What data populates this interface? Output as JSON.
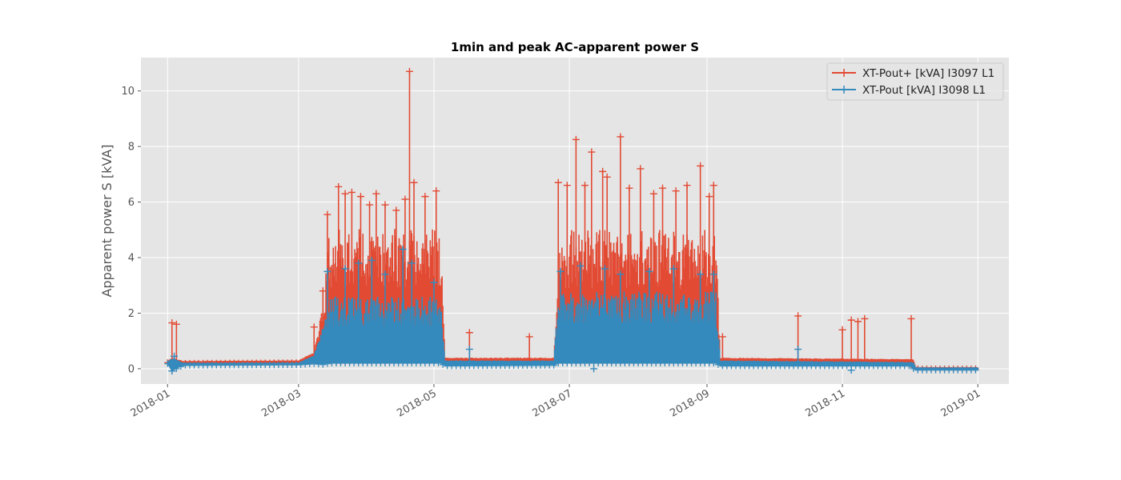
{
  "chart_data": {
    "type": "line",
    "title": "1min and peak AC-apparent power S",
    "xlabel": "",
    "ylabel": "Apparent power S [kVA]",
    "x_type": "date",
    "xlim": [
      "2017-12-20",
      "2019-01-15"
    ],
    "ylim": [
      -0.55,
      11.2
    ],
    "x_ticks": [
      "2018-01-01",
      "2018-03-01",
      "2018-05-01",
      "2018-07-01",
      "2018-09-01",
      "2018-11-01",
      "2019-01-01"
    ],
    "x_tick_labels": [
      "2018-01",
      "2018-03",
      "2018-05",
      "2018-07",
      "2018-09",
      "2018-11",
      "2019-01"
    ],
    "y_ticks": [
      0,
      2,
      4,
      6,
      8,
      10
    ],
    "y_tick_labels": [
      "0",
      "2",
      "4",
      "6",
      "8",
      "10"
    ],
    "grid": true,
    "legend_position": "top-right",
    "series": [
      {
        "name": "XT-Pout+ [kVA] I3097 L1",
        "color": "#e24a33",
        "marker": "+",
        "band": {
          "x": [
            "2018-01-01",
            "2018-01-03",
            "2018-01-08",
            "2018-03-01",
            "2018-03-08",
            "2018-03-12",
            "2018-03-15",
            "2018-05-04",
            "2018-05-06",
            "2018-06-24",
            "2018-06-25",
            "2018-06-26",
            "2018-09-05",
            "2018-09-07",
            "2018-12-01",
            "2018-12-03",
            "2018-12-04",
            "2019-01-01"
          ],
          "low": [
            0.22,
            0.2,
            0.2,
            0.22,
            0.25,
            0.3,
            0.25,
            0.28,
            0.2,
            0.2,
            0.25,
            0.25,
            0.25,
            0.2,
            0.2,
            0.05,
            0.0,
            0.0
          ],
          "high": [
            0.28,
            0.4,
            0.28,
            0.3,
            0.6,
            2.5,
            5.0,
            5.1,
            0.4,
            0.4,
            2.0,
            5.0,
            5.0,
            0.4,
            0.35,
            0.35,
            0.05,
            0.05
          ]
        },
        "peaks": [
          [
            "2018-01-03",
            1.65
          ],
          [
            "2018-01-05",
            1.6
          ],
          [
            "2018-03-08",
            1.5
          ],
          [
            "2018-03-12",
            2.8
          ],
          [
            "2018-03-14",
            5.55
          ],
          [
            "2018-03-19",
            6.55
          ],
          [
            "2018-03-22",
            6.3
          ],
          [
            "2018-03-25",
            6.35
          ],
          [
            "2018-03-29",
            6.2
          ],
          [
            "2018-04-02",
            5.9
          ],
          [
            "2018-04-05",
            6.3
          ],
          [
            "2018-04-09",
            5.9
          ],
          [
            "2018-04-14",
            5.7
          ],
          [
            "2018-04-18",
            6.1
          ],
          [
            "2018-04-20",
            10.7
          ],
          [
            "2018-04-22",
            6.7
          ],
          [
            "2018-04-27",
            6.2
          ],
          [
            "2018-05-02",
            6.4
          ],
          [
            "2018-05-17",
            1.3
          ],
          [
            "2018-06-13",
            1.15
          ],
          [
            "2018-06-26",
            6.7
          ],
          [
            "2018-06-30",
            6.6
          ],
          [
            "2018-07-04",
            8.25
          ],
          [
            "2018-07-08",
            6.6
          ],
          [
            "2018-07-11",
            7.8
          ],
          [
            "2018-07-16",
            7.1
          ],
          [
            "2018-07-18",
            6.9
          ],
          [
            "2018-07-24",
            8.35
          ],
          [
            "2018-07-28",
            6.5
          ],
          [
            "2018-08-02",
            7.2
          ],
          [
            "2018-08-08",
            6.3
          ],
          [
            "2018-08-12",
            6.5
          ],
          [
            "2018-08-18",
            6.4
          ],
          [
            "2018-08-23",
            6.6
          ],
          [
            "2018-08-29",
            7.3
          ],
          [
            "2018-09-02",
            6.2
          ],
          [
            "2018-09-04",
            6.6
          ],
          [
            "2018-09-08",
            1.15
          ],
          [
            "2018-10-12",
            1.9
          ],
          [
            "2018-11-01",
            1.4
          ],
          [
            "2018-11-05",
            1.75
          ],
          [
            "2018-11-08",
            1.7
          ],
          [
            "2018-11-11",
            1.8
          ],
          [
            "2018-12-02",
            1.8
          ]
        ]
      },
      {
        "name": "XT-Pout [kVA] I3098 L1",
        "color": "#348abd",
        "marker": "+",
        "band": {
          "x": [
            "2018-01-01",
            "2018-01-03",
            "2018-01-08",
            "2018-03-01",
            "2018-03-08",
            "2018-03-12",
            "2018-03-15",
            "2018-05-04",
            "2018-05-06",
            "2018-06-24",
            "2018-06-25",
            "2018-06-26",
            "2018-09-05",
            "2018-09-07",
            "2018-12-01",
            "2018-12-03",
            "2018-12-04",
            "2019-01-01"
          ],
          "low": [
            0.18,
            -0.08,
            0.12,
            0.14,
            0.18,
            0.15,
            0.2,
            0.2,
            0.1,
            0.12,
            0.15,
            0.2,
            0.2,
            0.1,
            0.1,
            0.0,
            -0.05,
            -0.05
          ],
          "high": [
            0.24,
            0.4,
            0.22,
            0.22,
            0.5,
            1.5,
            2.6,
            2.6,
            0.3,
            0.3,
            1.5,
            2.8,
            2.8,
            0.3,
            0.25,
            0.25,
            0.05,
            0.05
          ]
        },
        "peaks": [
          [
            "2018-01-04",
            0.45
          ],
          [
            "2018-03-14",
            3.5
          ],
          [
            "2018-03-22",
            3.6
          ],
          [
            "2018-03-28",
            3.8
          ],
          [
            "2018-04-03",
            3.9
          ],
          [
            "2018-04-09",
            3.4
          ],
          [
            "2018-04-17",
            4.3
          ],
          [
            "2018-04-21",
            3.8
          ],
          [
            "2018-05-01",
            3.1
          ],
          [
            "2018-05-17",
            0.7
          ],
          [
            "2018-06-27",
            3.5
          ],
          [
            "2018-07-06",
            3.7
          ],
          [
            "2018-07-17",
            3.6
          ],
          [
            "2018-07-24",
            3.4
          ],
          [
            "2018-08-06",
            3.5
          ],
          [
            "2018-08-17",
            3.6
          ],
          [
            "2018-08-29",
            3.4
          ],
          [
            "2018-09-04",
            3.4
          ],
          [
            "2018-10-12",
            0.7
          ]
        ],
        "dips": [
          [
            "2018-01-03",
            -0.08
          ],
          [
            "2018-07-12",
            0.0
          ],
          [
            "2018-11-05",
            -0.05
          ]
        ]
      }
    ]
  }
}
